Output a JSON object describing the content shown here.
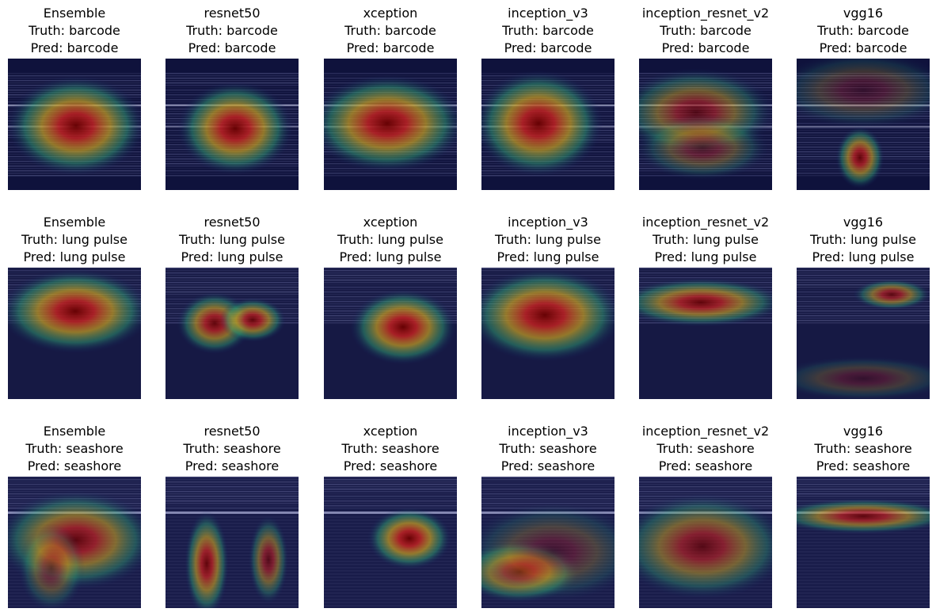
{
  "rows": [
    {
      "truth": "barcode",
      "pred": "barcode",
      "panels": [
        {
          "model": "Ensemble",
          "truth_line": "Truth: barcode",
          "pred_line": "Pred: barcode"
        },
        {
          "model": "resnet50",
          "truth_line": "Truth: barcode",
          "pred_line": "Pred: barcode"
        },
        {
          "model": "xception",
          "truth_line": "Truth: barcode",
          "pred_line": "Pred: barcode"
        },
        {
          "model": "inception_v3",
          "truth_line": "Truth: barcode",
          "pred_line": "Pred: barcode"
        },
        {
          "model": "inception_resnet_v2",
          "truth_line": "Truth: barcode",
          "pred_line": "Pred: barcode"
        },
        {
          "model": "vgg16",
          "truth_line": "Truth: barcode",
          "pred_line": "Pred: barcode"
        }
      ]
    },
    {
      "truth": "lung pulse",
      "pred": "lung pulse",
      "panels": [
        {
          "model": "Ensemble",
          "truth_line": "Truth: lung pulse",
          "pred_line": "Pred: lung pulse"
        },
        {
          "model": "resnet50",
          "truth_line": "Truth: lung pulse",
          "pred_line": "Pred: lung pulse"
        },
        {
          "model": "xception",
          "truth_line": "Truth: lung pulse",
          "pred_line": "Pred: lung pulse"
        },
        {
          "model": "inception_v3",
          "truth_line": "Truth: lung pulse",
          "pred_line": "Pred: lung pulse"
        },
        {
          "model": "inception_resnet_v2",
          "truth_line": "Truth: lung pulse",
          "pred_line": "Pred: lung pulse"
        },
        {
          "model": "vgg16",
          "truth_line": "Truth: lung pulse",
          "pred_line": "Pred: lung pulse"
        }
      ]
    },
    {
      "truth": "seashore",
      "pred": "seashore",
      "panels": [
        {
          "model": "Ensemble",
          "truth_line": "Truth: seashore",
          "pred_line": "Pred: seashore"
        },
        {
          "model": "resnet50",
          "truth_line": "Truth: seashore",
          "pred_line": "Pred: seashore"
        },
        {
          "model": "xception",
          "truth_line": "Truth: seashore",
          "pred_line": "Pred: seashore"
        },
        {
          "model": "inception_v3",
          "truth_line": "Truth: seashore",
          "pred_line": "Pred: seashore"
        },
        {
          "model": "inception_resnet_v2",
          "truth_line": "Truth: seashore",
          "pred_line": "Pred: seashore"
        },
        {
          "model": "vgg16",
          "truth_line": "Truth: seashore",
          "pred_line": "Pred: seashore"
        }
      ]
    }
  ]
}
